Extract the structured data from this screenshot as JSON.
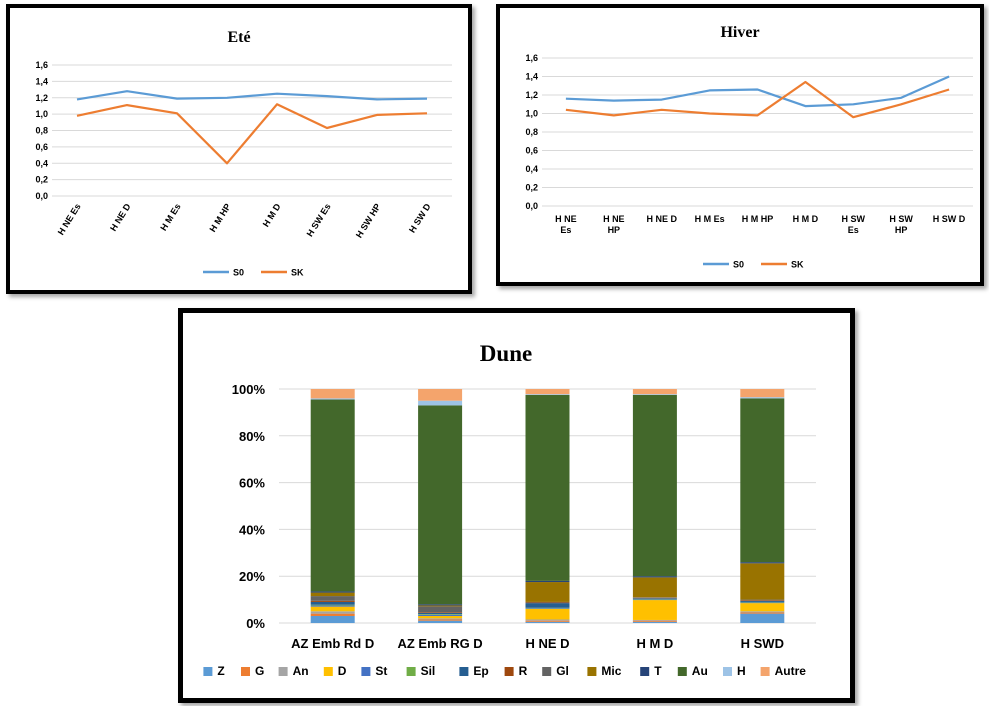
{
  "chart_data": [
    {
      "type": "line",
      "title": "Eté",
      "categories": [
        "H NE Es",
        "H NE D",
        "H M Es",
        "H M HP",
        "H M D",
        "H SW Es",
        "H SW HP",
        "H SW D"
      ],
      "series": [
        {
          "name": "S0",
          "color": "#5B9BD5",
          "values": [
            1.18,
            1.28,
            1.19,
            1.2,
            1.25,
            1.22,
            1.18,
            1.19
          ]
        },
        {
          "name": "SK",
          "color": "#ED7D31",
          "values": [
            0.98,
            1.11,
            1.01,
            0.4,
            1.12,
            0.83,
            0.99,
            1.01
          ]
        }
      ],
      "yticks": [
        "0,0",
        "0,2",
        "0,4",
        "0,6",
        "0,8",
        "1,0",
        "1,2",
        "1,4",
        "1,6"
      ],
      "ylim": [
        0,
        1.6
      ],
      "grid": true,
      "legend": "bottom"
    },
    {
      "type": "line",
      "title": "Hiver",
      "categories": [
        "H NE Es",
        "H NE HP",
        "H NE D",
        "H M Es",
        "H M HP",
        "H M D",
        "H SW Es",
        "H SW HP",
        "H SW D"
      ],
      "series": [
        {
          "name": "S0",
          "color": "#5B9BD5",
          "values": [
            1.16,
            1.14,
            1.15,
            1.25,
            1.26,
            1.08,
            1.1,
            1.17,
            1.4
          ]
        },
        {
          "name": "SK",
          "color": "#ED7D31",
          "values": [
            1.04,
            0.98,
            1.04,
            1.0,
            0.98,
            1.34,
            0.96,
            1.1,
            1.26
          ]
        }
      ],
      "yticks": [
        "0,0",
        "0,2",
        "0,4",
        "0,6",
        "0,8",
        "1,0",
        "1,2",
        "1,4",
        "1,6"
      ],
      "ylim": [
        0,
        1.6
      ],
      "grid": true,
      "legend": "bottom"
    },
    {
      "type": "bar",
      "stacked": "percent",
      "title": "Dune",
      "categories": [
        "AZ Emb Rd D",
        "AZ Emb RG D",
        "H NE D",
        "H M D",
        "H SWD"
      ],
      "yticks": [
        "0%",
        "20%",
        "40%",
        "60%",
        "80%",
        "100%"
      ],
      "ylim": [
        0,
        100
      ],
      "grid": true,
      "legend": "bottom",
      "series": [
        {
          "name": "Z",
          "color": "#5B9BD5",
          "values": [
            3.0,
            1.0,
            0.5,
            0.5,
            4.0
          ]
        },
        {
          "name": "G",
          "color": "#ED7D31",
          "values": [
            1.0,
            0.5,
            0.5,
            0.5,
            0.5
          ]
        },
        {
          "name": "An",
          "color": "#A5A5A5",
          "values": [
            1.0,
            0.5,
            0.5,
            0.3,
            0.5
          ]
        },
        {
          "name": "D",
          "color": "#FFC000",
          "values": [
            2.0,
            1.0,
            4.5,
            8.5,
            3.5
          ]
        },
        {
          "name": "St",
          "color": "#4472C4",
          "values": [
            0.5,
            0.5,
            0.3,
            0.3,
            0.3
          ]
        },
        {
          "name": "Sil",
          "color": "#70AD47",
          "values": [
            0.3,
            0.3,
            0.2,
            0.2,
            0.2
          ]
        },
        {
          "name": "Ep",
          "color": "#255E91",
          "values": [
            1.2,
            0.5,
            2.0,
            0.3,
            0.5
          ]
        },
        {
          "name": "R",
          "color": "#9E480E",
          "values": [
            0.5,
            0.3,
            0.3,
            0.2,
            0.3
          ]
        },
        {
          "name": "Gl",
          "color": "#636363",
          "values": [
            2.0,
            2.5,
            0.2,
            0.2,
            0.2
          ]
        },
        {
          "name": "Mic",
          "color": "#997300",
          "values": [
            1.5,
            0.4,
            8.5,
            8.5,
            15.5
          ]
        },
        {
          "name": "T",
          "color": "#264478",
          "values": [
            0.5,
            0.5,
            0.5,
            0.5,
            0.5
          ]
        },
        {
          "name": "Au",
          "color": "#43682B",
          "values": [
            82.0,
            85.0,
            79.5,
            77.5,
            70.0
          ]
        },
        {
          "name": "H",
          "color": "#9DC3E6",
          "values": [
            0.5,
            2.0,
            0.3,
            0.3,
            0.5
          ]
        },
        {
          "name": "Autre",
          "color": "#F4A46C",
          "values": [
            4.0,
            5.0,
            2.2,
            2.2,
            3.5
          ]
        }
      ]
    }
  ]
}
